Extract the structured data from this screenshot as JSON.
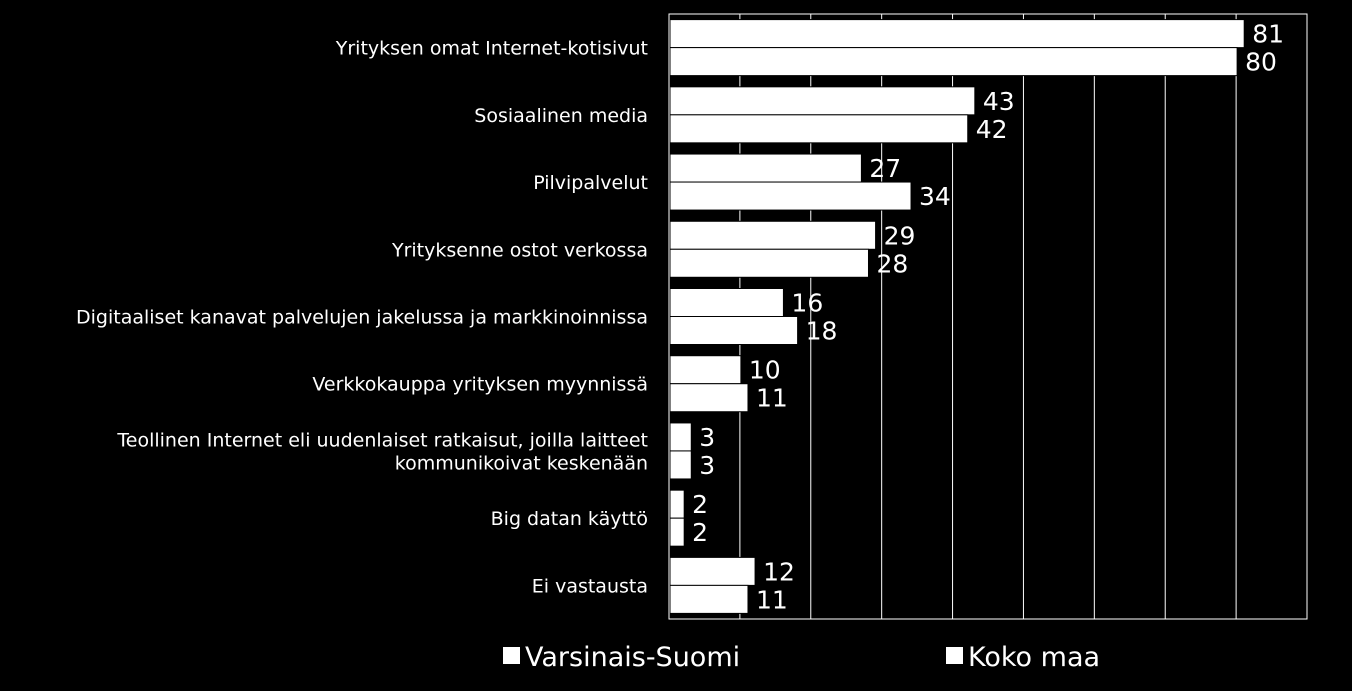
{
  "chart_data": {
    "type": "bar",
    "orientation": "horizontal",
    "title": "",
    "xlabel": "",
    "ylabel": "",
    "xlim": [
      0,
      90
    ],
    "grid": true,
    "legend": "bottom",
    "categories": [
      [
        "Yrityksen omat Internet-kotisivut"
      ],
      [
        "Sosiaalinen media"
      ],
      [
        "Pilvipalvelut"
      ],
      [
        "Yrityksenne ostot verkossa"
      ],
      [
        "Digitaaliset kanavat palvelujen jakelussa ja markkinoinnissa"
      ],
      [
        "Verkkokauppa yrityksen myynnissä"
      ],
      [
        "Teollinen Internet eli uudenlaiset ratkaisut, joilla laitteet",
        "kommunikoivat keskenään"
      ],
      [
        "Big datan käyttö"
      ],
      [
        "Ei vastausta"
      ]
    ],
    "series": [
      {
        "name": "Varsinais-Suomi",
        "color": "#ffffff",
        "values": [
          81,
          43,
          27,
          29,
          16,
          10,
          3,
          2,
          12
        ]
      },
      {
        "name": "Koko maa",
        "color": "#ffffff",
        "values": [
          80,
          42,
          34,
          28,
          18,
          11,
          3,
          2,
          11
        ]
      }
    ]
  }
}
